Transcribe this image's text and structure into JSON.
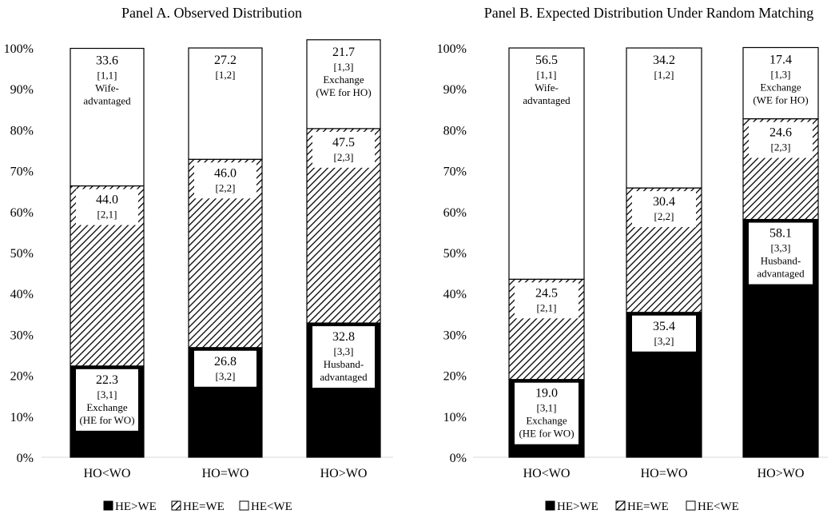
{
  "chart_data": [
    {
      "type": "bar",
      "stacked": "percent",
      "title": "Panel A. Observed Distribution",
      "categories": [
        "HO<WO",
        "HO=WO",
        "HO>WO"
      ],
      "ylim": [
        0,
        100
      ],
      "yticks": [
        "0%",
        "10%",
        "20%",
        "30%",
        "40%",
        "50%",
        "60%",
        "70%",
        "80%",
        "90%",
        "100%"
      ],
      "series": [
        {
          "name": "HE>WE",
          "values": [
            22.3,
            26.8,
            32.8
          ],
          "codes": [
            "[3,1]",
            "[3,2]",
            "[3,3]"
          ],
          "descriptions": [
            [
              "Exchange",
              "(HE for WO)"
            ],
            [],
            [
              "Husband-",
              "advantaged"
            ]
          ]
        },
        {
          "name": "HE=WE",
          "values": [
            44.0,
            46.0,
            47.5
          ],
          "codes": [
            "[2,1]",
            "[2,2]",
            "[2,3]"
          ],
          "descriptions": [
            [],
            [],
            []
          ]
        },
        {
          "name": "HE<WE",
          "values": [
            33.6,
            27.2,
            21.7
          ],
          "codes": [
            "[1,1]",
            "[1,2]",
            "[1,3]"
          ],
          "descriptions": [
            [
              "Wife-",
              "advantaged"
            ],
            [],
            [
              "Exchange",
              "(WE for HO)"
            ]
          ]
        }
      ]
    },
    {
      "type": "bar",
      "stacked": "percent",
      "title": "Panel B. Expected Distribution Under Random Matching",
      "categories": [
        "HO<WO",
        "HO=WO",
        "HO>WO"
      ],
      "ylim": [
        0,
        100
      ],
      "yticks": [
        "0%",
        "10%",
        "20%",
        "30%",
        "40%",
        "50%",
        "60%",
        "70%",
        "80%",
        "90%",
        "100%"
      ],
      "series": [
        {
          "name": "HE>WE",
          "values": [
            19.0,
            35.4,
            58.1
          ],
          "codes": [
            "[3,1]",
            "[3,2]",
            "[3,3]"
          ],
          "descriptions": [
            [
              "Exchange",
              "(HE for WO)"
            ],
            [],
            [
              "Husband-",
              "advantaged"
            ]
          ]
        },
        {
          "name": "HE=WE",
          "values": [
            24.5,
            30.4,
            24.6
          ],
          "codes": [
            "[2,1]",
            "[2,2]",
            "[2,3]"
          ],
          "descriptions": [
            [],
            [],
            []
          ]
        },
        {
          "name": "HE<WE",
          "values": [
            56.5,
            34.2,
            17.4
          ],
          "codes": [
            "[1,1]",
            "[1,2]",
            "[1,3]"
          ],
          "descriptions": [
            [
              "Wife-",
              "advantaged"
            ],
            [],
            [
              "Exchange",
              "(WE for HO)"
            ]
          ]
        }
      ]
    }
  ],
  "legend": {
    "items": [
      "HE>WE",
      "HE=WE",
      "HE<WE"
    ]
  },
  "colors": {
    "he_gt_we": "#000000",
    "he_eq_we": "#ffffff",
    "he_lt_we": "#ffffff",
    "hatch": "#000000",
    "axis": "#d9d9d9"
  }
}
